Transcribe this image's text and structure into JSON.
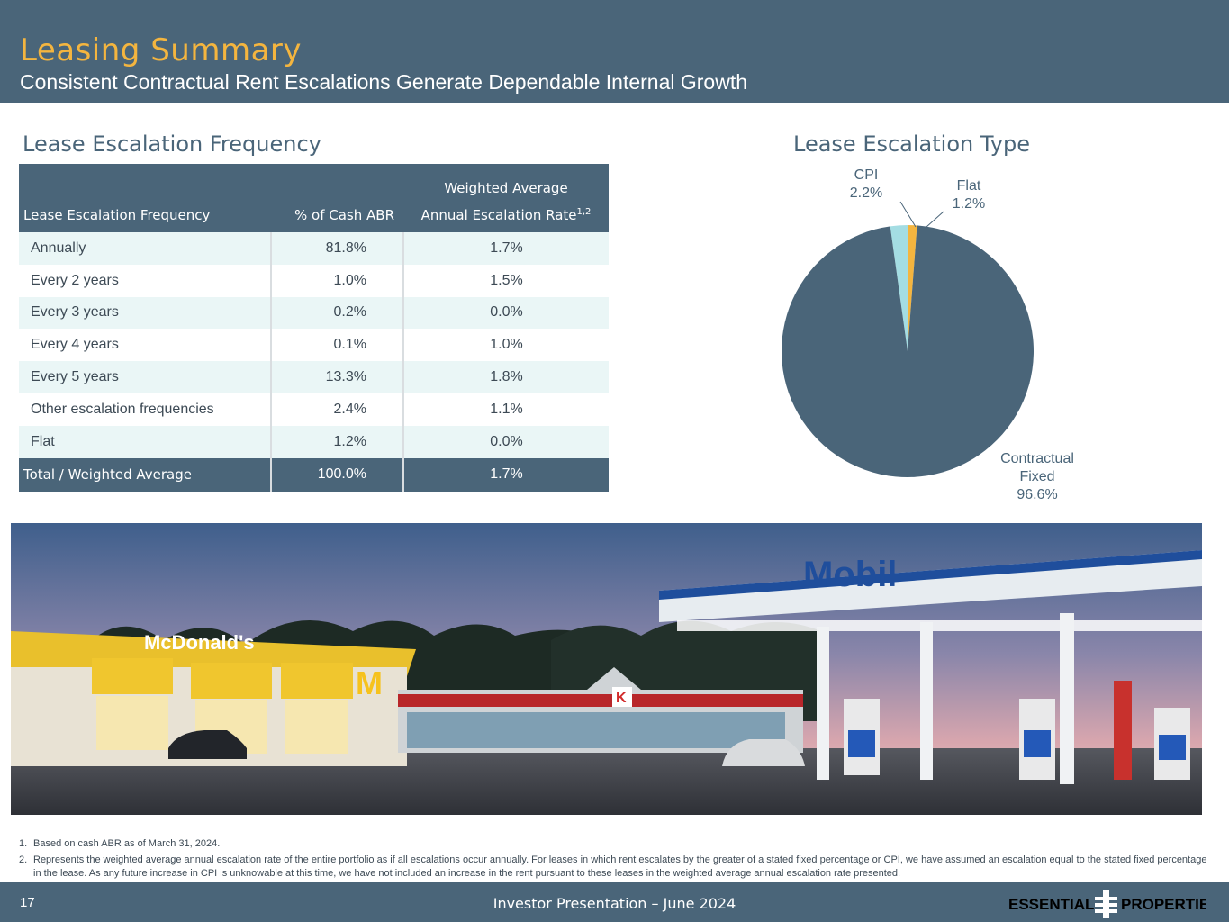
{
  "header": {
    "title": "Leasing Summary",
    "subtitle": "Consistent Contractual Rent Escalations Generate Dependable Internal Growth"
  },
  "frequency_section": {
    "title": "Lease Escalation Frequency",
    "table": {
      "header_row1": [
        "",
        "",
        "Weighted Average"
      ],
      "header_row2": [
        "Lease Escalation Frequency",
        "% of Cash ABR",
        "Annual Escalation Rate"
      ],
      "header_sup": "1,2",
      "rows": [
        [
          "Annually",
          "81.8%",
          "1.7%"
        ],
        [
          "Every 2 years",
          "1.0%",
          "1.5%"
        ],
        [
          "Every 3 years",
          "0.2%",
          "0.0%"
        ],
        [
          "Every 4 years",
          "0.1%",
          "1.0%"
        ],
        [
          "Every 5 years",
          "13.3%",
          "1.8%"
        ],
        [
          "Other escalation frequencies",
          "2.4%",
          "1.1%"
        ],
        [
          "Flat",
          "1.2%",
          "0.0%"
        ]
      ],
      "total": [
        "Total / Weighted Average",
        "100.0%",
        "1.7%"
      ]
    }
  },
  "type_section": {
    "title": "Lease Escalation Type"
  },
  "chart_data": {
    "type": "pie",
    "title": "Lease Escalation Type",
    "slices": [
      {
        "label_line1": "CPI",
        "label_line2": "",
        "value_label": "2.2%",
        "value": 2.2,
        "color": "#a4dde3"
      },
      {
        "label_line1": "Flat",
        "label_line2": "",
        "value_label": "1.2%",
        "value": 1.2,
        "color": "#f4b53f"
      },
      {
        "label_line1": "Contractual",
        "label_line2": "Fixed",
        "value_label": "96.6%",
        "value": 96.6,
        "color": "#4a6579"
      }
    ]
  },
  "footnotes": [
    {
      "num": "1.",
      "text": "Based on cash ABR as of March 31, 2024."
    },
    {
      "num": "2.",
      "text": "Represents the weighted average annual escalation rate of the entire portfolio as if all escalations occur annually. For leases in which rent escalates by the greater of a stated fixed percentage or CPI, we have assumed an escalation equal to the stated fixed percentage in the lease. As any future increase in CPI is unknowable at this time, we have not included an increase in the rent pursuant to these leases in the weighted average annual escalation rate presented."
    }
  ],
  "photo": {
    "sign_mcdonalds": "McDonald's",
    "sign_mobil": "Mobil"
  },
  "footer": {
    "page_number": "17",
    "text": "Investor Presentation – June 2024",
    "logo_left": "ESSENTIAL",
    "logo_right": "PROPERTIES"
  },
  "colors": {
    "brand": "#4a6579",
    "accent": "#f4b53f",
    "row_alt": "#eaf6f6"
  }
}
